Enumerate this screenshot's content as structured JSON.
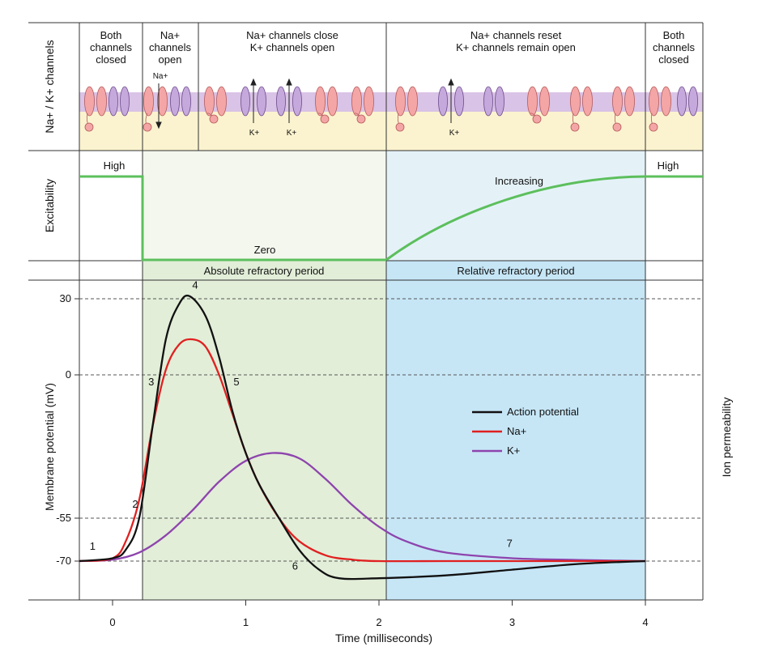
{
  "row_titles": {
    "channels": "Na+ / K+ channels",
    "excitability": "Excitability",
    "potential": "Membrane potential (mV)",
    "permeability": "Ion permeability"
  },
  "channel_headers": [
    {
      "lines": [
        "Both",
        "channels",
        "closed"
      ]
    },
    {
      "lines": [
        "Na+",
        "channels",
        "open"
      ]
    },
    {
      "lines": [
        "Na+ channels close",
        "K+ channels open"
      ]
    },
    {
      "lines": [
        "Na+ channels reset",
        "K+ channels remain open"
      ]
    },
    {
      "lines": [
        "Both",
        "channels",
        "closed"
      ]
    }
  ],
  "ion_labels": {
    "na_in": "Na+",
    "k_out": "K+"
  },
  "excitability_labels": {
    "high_left": "High",
    "zero": "Zero",
    "increasing": "Increasing",
    "high_right": "High"
  },
  "periods": {
    "absolute": "Absolute refractory period",
    "relative": "Relative refractory period"
  },
  "colors": {
    "action_potential": "#111111",
    "na": "#e02020",
    "k": "#8e44ad",
    "excitability": "#5cbf5c",
    "absolute_bg": "#e2eed8",
    "relative_bg": "#c6e6f6",
    "absolute_header_bg": "#f4f7ee",
    "relative_header_bg": "#e4f2f8",
    "membrane": "#d9c3e6",
    "cytoplasm": "#fbf3cf",
    "na_channel": "#f4a6a6",
    "k_channel": "#c6a9dc"
  },
  "chart_data": {
    "type": "line",
    "xlabel": "Time (milliseconds)",
    "ylabel": "Membrane potential (mV)",
    "y2label": "Ion permeability",
    "xlim": [
      -0.25,
      4.45
    ],
    "ylim": [
      -90,
      40
    ],
    "x_ticks": [
      0,
      1,
      2,
      3,
      4
    ],
    "y_ticks": [
      30,
      0,
      -55,
      -70
    ],
    "dashed_levels": [
      30,
      0,
      -55,
      -70
    ],
    "regions": [
      {
        "name": "Absolute refractory period",
        "x": [
          0.23,
          2.05
        ]
      },
      {
        "name": "Relative refractory period",
        "x": [
          2.05,
          4.0
        ]
      }
    ],
    "series": [
      {
        "name": "Action potential",
        "color": "#111111",
        "x": [
          -0.25,
          0.0,
          0.1,
          0.2,
          0.3,
          0.4,
          0.5,
          0.58,
          0.7,
          0.8,
          0.9,
          1.0,
          1.1,
          1.25,
          1.4,
          1.55,
          1.7,
          2.0,
          2.5,
          3.0,
          3.5,
          4.0
        ],
        "y": [
          -70,
          -69,
          -66,
          -55,
          -20,
          14,
          28,
          31,
          23,
          7,
          -14,
          -30,
          -42,
          -55,
          -66,
          -73,
          -76,
          -76,
          -75,
          -73,
          -71,
          -70
        ]
      },
      {
        "name": "Na+",
        "color": "#e02020",
        "x": [
          -0.25,
          0.0,
          0.1,
          0.2,
          0.3,
          0.4,
          0.5,
          0.6,
          0.7,
          0.8,
          0.9,
          1.0,
          1.1,
          1.25,
          1.4,
          1.6,
          1.8,
          2.0,
          2.5,
          3.0,
          4.0
        ],
        "y": [
          -70,
          -69,
          -63,
          -48,
          -20,
          2,
          12,
          14,
          11,
          0,
          -15,
          -30,
          -42,
          -55,
          -63,
          -68,
          -69.5,
          -70,
          -70,
          -70,
          -70
        ]
      },
      {
        "name": "K+",
        "color": "#8e44ad",
        "x": [
          -0.25,
          0.0,
          0.2,
          0.4,
          0.6,
          0.8,
          1.0,
          1.2,
          1.4,
          1.6,
          1.8,
          2.0,
          2.2,
          2.5,
          3.0,
          3.5,
          4.0
        ],
        "y": [
          -70,
          -69.5,
          -67,
          -61,
          -52,
          -41,
          -33,
          -30,
          -32,
          -40,
          -50,
          -58,
          -63,
          -67,
          -69,
          -69.6,
          -70
        ]
      }
    ],
    "legend": {
      "position": "center-right",
      "entries": [
        "Action potential",
        "Na+",
        "K+"
      ]
    },
    "point_labels": [
      {
        "text": "1",
        "x": -0.15,
        "y": -66
      },
      {
        "text": "2",
        "x": 0.17,
        "y": -51
      },
      {
        "text": "3",
        "x": 0.29,
        "y": -4
      },
      {
        "text": "4",
        "x": 0.62,
        "y": 34
      },
      {
        "text": "5",
        "x": 0.93,
        "y": -4
      },
      {
        "text": "6",
        "x": 1.37,
        "y": -73
      },
      {
        "text": "7",
        "x": 2.98,
        "y": -65
      }
    ]
  }
}
